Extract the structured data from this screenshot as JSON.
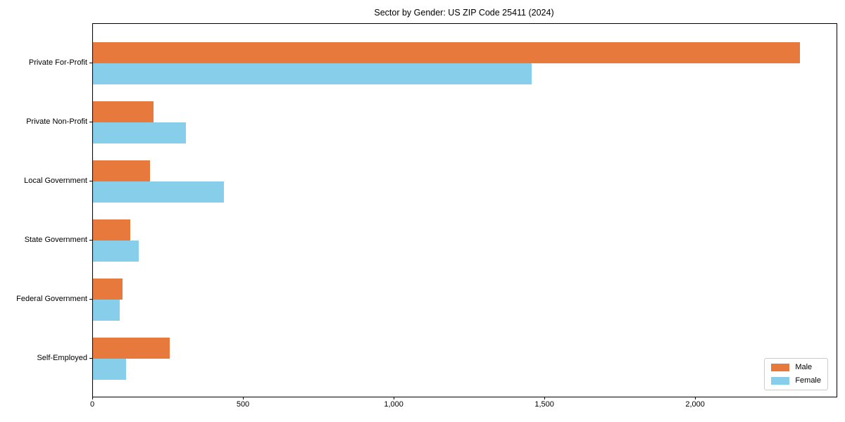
{
  "chart_data": {
    "type": "bar",
    "orientation": "horizontal",
    "title": "Sector by Gender: US ZIP Code 25411 (2024)",
    "xlabel": "",
    "ylabel": "",
    "categories": [
      "Private For-Profit",
      "Private Non-Profit",
      "Local Government",
      "State Government",
      "Federal Government",
      "Self-Employed"
    ],
    "series": [
      {
        "name": "Male",
        "color": "#E8793D",
        "values": [
          2345,
          200,
          189,
          124,
          98,
          255
        ]
      },
      {
        "name": "Female",
        "color": "#87CEEB",
        "values": [
          1455,
          308,
          434,
          152,
          89,
          110
        ]
      }
    ],
    "xlim": [
      0,
      2467
    ],
    "xticks": [
      0,
      500,
      1000,
      1500,
      2000
    ],
    "xtick_labels": [
      "0",
      "500",
      "1,000",
      "1,500",
      "2,000"
    ],
    "legend_position": "lower right",
    "grid": false
  }
}
